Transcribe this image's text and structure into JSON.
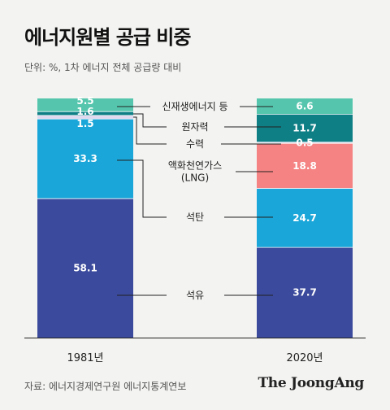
{
  "header": {
    "title": "에너지원별 공급 비중",
    "subtitle": "단위: %, 1차 에너지 전체 공급량 대비"
  },
  "footer": {
    "source": "자료: 에너지경제연구원 에너지통계연보",
    "brand": "The JoongAng"
  },
  "chart_data": {
    "type": "bar",
    "stacked": true,
    "categories": [
      "1981년",
      "2020년"
    ],
    "series": [
      {
        "name": "석유",
        "values": [
          58.1,
          37.7
        ],
        "color": "#3b4a9c"
      },
      {
        "name": "석탄",
        "values": [
          33.3,
          24.7
        ],
        "color": "#1aa6d8"
      },
      {
        "name": "액화천연가스 (LNG)",
        "values": [
          0,
          18.8
        ],
        "color": "#f58383"
      },
      {
        "name": "수력",
        "values": [
          1.5,
          0.5
        ],
        "color": "#e0d8ee"
      },
      {
        "name": "원자력",
        "values": [
          1.6,
          11.7
        ],
        "color": "#0f7f86"
      },
      {
        "name": "신재생에너지 등",
        "values": [
          5.5,
          6.6
        ],
        "color": "#55c6ad"
      }
    ],
    "data_labels": [
      [
        "58.1",
        "37.7"
      ],
      [
        "33.3",
        "24.7"
      ],
      [
        "",
        "18.8"
      ],
      [
        "1.5",
        "0.5"
      ],
      [
        "1.6",
        "11.7"
      ],
      [
        "5.5",
        "6.6"
      ]
    ],
    "legend_labels": [
      [
        "석유"
      ],
      [
        "석탄"
      ],
      [
        "액화천연가스",
        "(LNG)"
      ],
      [
        "수력"
      ],
      [
        "원자력"
      ],
      [
        "신재생에너지 등"
      ]
    ],
    "legend_placement": "center, between bars",
    "ylim": [
      0,
      100
    ]
  }
}
